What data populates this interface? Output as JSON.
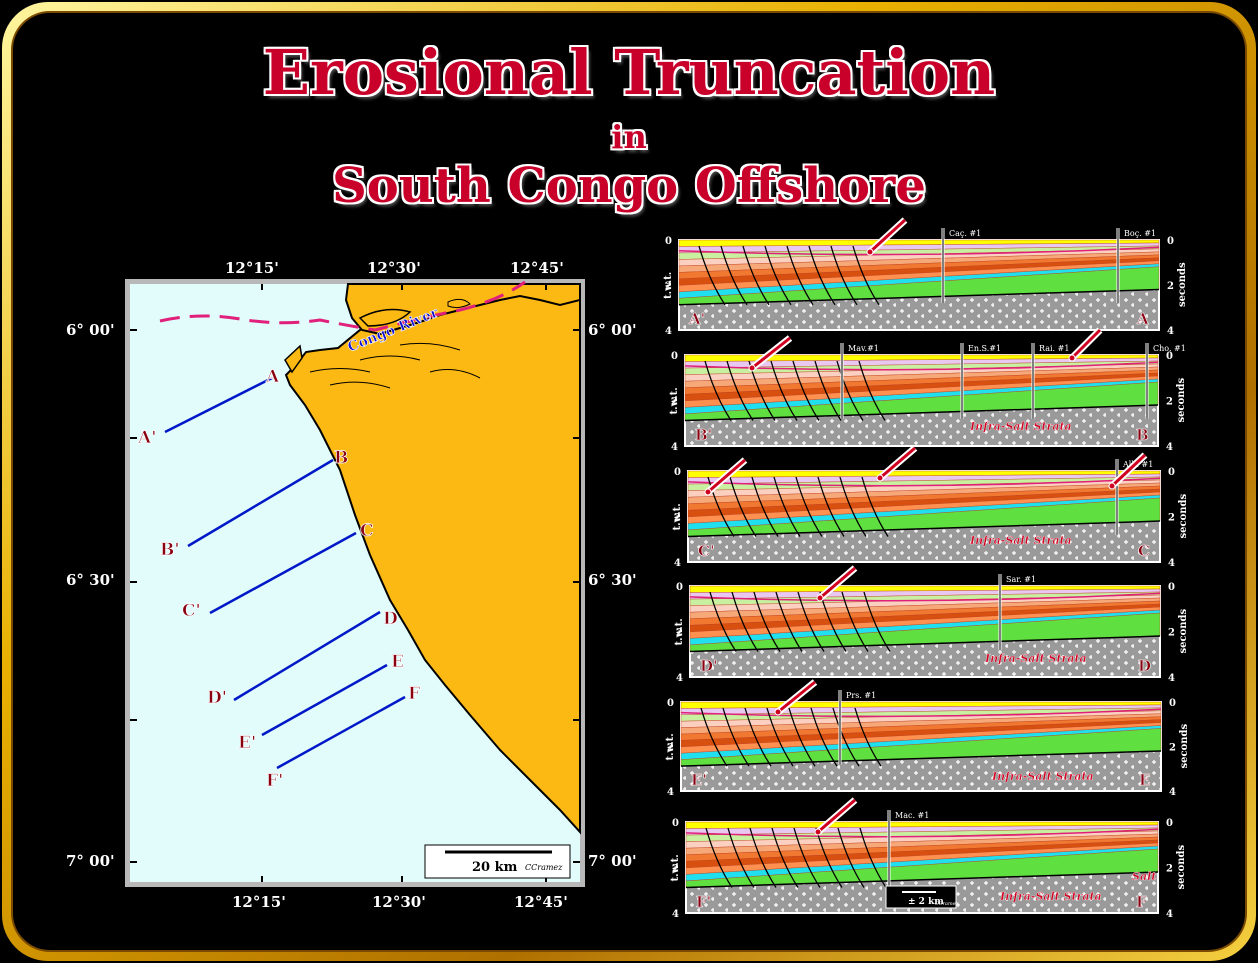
{
  "title": {
    "line1": "Erosional Truncation",
    "line2": "in",
    "line3": "South Congo Offshore"
  },
  "map": {
    "top_ticks": [
      "12°15'",
      "12°30'",
      "12°45'"
    ],
    "bottom_ticks": [
      "12°15'",
      "12°30'",
      "12°45'"
    ],
    "left_ticks": [
      "6° 00'",
      "6° 30'",
      "7° 00'"
    ],
    "right_ticks": [
      "6° 00'",
      "6° 30'",
      "7° 00'"
    ],
    "river_label": "Congo River",
    "scale_label": "20 km",
    "credit": "CCramez",
    "lines": [
      {
        "start": "A'",
        "end": "A"
      },
      {
        "start": "B'",
        "end": "B"
      },
      {
        "start": "C'",
        "end": "C"
      },
      {
        "start": "D'",
        "end": "D"
      },
      {
        "start": "E'",
        "end": "E"
      },
      {
        "start": "F'",
        "end": "F"
      }
    ],
    "colors": {
      "land": "#fdb913",
      "sea": "#e2fbfb",
      "lines": "#0018c8",
      "boundary": "#e0207a"
    }
  },
  "sections": [
    {
      "left": "A'",
      "right": "A",
      "wells": [
        "Caç. #1",
        "Boç. #1"
      ],
      "annotation": ""
    },
    {
      "left": "B'",
      "right": "B",
      "wells": [
        "Mav.#1",
        "En.S.#1",
        "Rai. #1",
        "Cho. #1"
      ],
      "annotation": "Infra-Salt Strata"
    },
    {
      "left": "C'",
      "right": "C",
      "wells": [
        "Alb. #1"
      ],
      "annotation": "Infra-Salt Strata"
    },
    {
      "left": "D'",
      "right": "D",
      "wells": [
        "Sar. #1"
      ],
      "annotation": "Infra-Salt Strata"
    },
    {
      "left": "E'",
      "right": "E",
      "wells": [
        "Prs. #1"
      ],
      "annotation": "Infra-Salt Strata"
    },
    {
      "left": "F'",
      "right": "F",
      "wells": [
        "Mac. #1"
      ],
      "annotation": "Infra-Salt Strata",
      "salt": "Salt",
      "scale": "± 2 km",
      "credit": "CCramez"
    }
  ],
  "section_axis": {
    "left_label": "t.w.t.",
    "right_label": "seconds",
    "ticks": [
      "0",
      "2",
      "4"
    ]
  }
}
